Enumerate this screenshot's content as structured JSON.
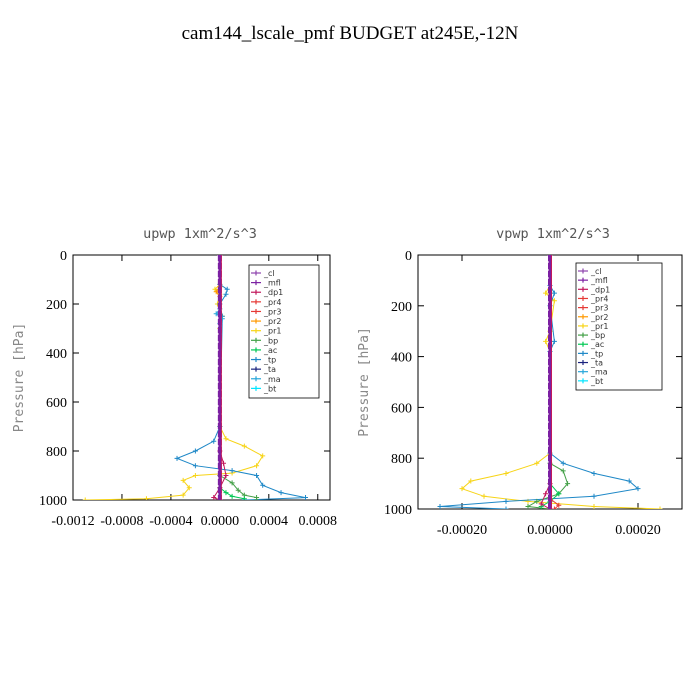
{
  "page": {
    "title": "cam144_lscale_pmf  BUDGET at245E,-12N"
  },
  "colors": {
    "_cl": "#8e44ad",
    "_mfl": "#7b1fa2",
    "_dp1": "#c2185b",
    "_pr4": "#e53935",
    "_pr3": "#e53935",
    "_pr2": "#ff9800",
    "_pr1": "#f7d417",
    "_bp": "#43a047",
    "_ac": "#00c853",
    "_tp": "#1e88c7",
    "_ta": "#1a237e",
    "_ma": "#26a6da",
    "_bt": "#00e5ff"
  },
  "chart_data": [
    {
      "type": "line",
      "title": "upwp  1xm^2/s^3",
      "ylabel": "Pressure [hPa]",
      "xlabel": "",
      "xlim": [
        -0.0012,
        0.0009
      ],
      "ylim": [
        1000,
        0
      ],
      "x_ticks": [
        "-0.0012",
        "-0.0008",
        "-0.0004",
        "0.0000",
        "0.0004",
        "0.0008"
      ],
      "y_ticks": [
        "0",
        "200",
        "400",
        "600",
        "800",
        "1000"
      ],
      "legend": [
        "_cl",
        "_mfl",
        "_dp1",
        "_pr4",
        "_pr3",
        "_pr2",
        "_pr1",
        "_bp",
        "_ac",
        "_tp",
        "_ta",
        "_ma",
        "_bt"
      ],
      "legend_position": "top-right",
      "series": [
        {
          "name": "_pr1",
          "points": [
            [
              0,
              0
            ],
            [
              0,
              120
            ],
            [
              -4e-05,
              140
            ],
            [
              0,
              160
            ],
            [
              -2e-05,
              200
            ],
            [
              2e-05,
              250
            ],
            [
              0,
              300
            ],
            [
              0,
              700
            ],
            [
              5e-05,
              750
            ],
            [
              0.0002,
              780
            ],
            [
              0.00035,
              820
            ],
            [
              0.0003,
              860
            ],
            [
              0.0001,
              890
            ],
            [
              -0.0002,
              900
            ],
            [
              -0.0003,
              920
            ],
            [
              -0.00025,
              950
            ],
            [
              -0.0003,
              980
            ],
            [
              -0.0006,
              995
            ],
            [
              -0.0011,
              1000
            ]
          ]
        },
        {
          "name": "_tp",
          "points": [
            [
              0,
              0
            ],
            [
              0,
              120
            ],
            [
              6e-05,
              140
            ],
            [
              5e-05,
              160
            ],
            [
              0,
              200
            ],
            [
              2e-05,
              250
            ],
            [
              0,
              700
            ],
            [
              -5e-05,
              760
            ],
            [
              -0.0002,
              800
            ],
            [
              -0.00035,
              830
            ],
            [
              -0.0002,
              860
            ],
            [
              0.0001,
              880
            ],
            [
              0.0003,
              900
            ],
            [
              0.00035,
              940
            ],
            [
              0.0005,
              970
            ],
            [
              0.0007,
              990
            ],
            [
              0.0002,
              1000
            ]
          ]
        },
        {
          "name": "_bp",
          "points": [
            [
              0,
              0
            ],
            [
              0,
              900
            ],
            [
              0.0001,
              930
            ],
            [
              0.00015,
              960
            ],
            [
              0.0002,
              980
            ],
            [
              0.0003,
              990
            ],
            [
              0.0003,
              1000
            ]
          ]
        },
        {
          "name": "_ac",
          "points": [
            [
              0,
              0
            ],
            [
              0,
              950
            ],
            [
              5e-05,
              970
            ],
            [
              0.0001,
              985
            ],
            [
              0.0002,
              995
            ]
          ]
        },
        {
          "name": "_dp1",
          "points": [
            [
              0,
              0
            ],
            [
              0,
              800
            ],
            [
              3e-05,
              850
            ],
            [
              5e-05,
              900
            ],
            [
              0,
              950
            ],
            [
              -5e-05,
              990
            ],
            [
              0,
              1000
            ]
          ]
        },
        {
          "name": "_pr2",
          "points": [
            [
              0,
              0
            ],
            [
              0,
              130
            ],
            [
              -3e-05,
              150
            ],
            [
              0,
              170
            ],
            [
              0,
              1000
            ]
          ]
        },
        {
          "name": "_ma",
          "points": [
            [
              0,
              0
            ],
            [
              0,
              220
            ],
            [
              -3e-05,
              240
            ],
            [
              2e-05,
              260
            ],
            [
              0,
              280
            ],
            [
              0,
              1000
            ]
          ]
        },
        {
          "name": "_mfl",
          "points": [
            [
              0,
              0
            ],
            [
              0,
              1000
            ]
          ]
        }
      ]
    },
    {
      "type": "line",
      "title": "vpwp  1xm^2/s^3",
      "ylabel": "Pressure [hPa]",
      "xlabel": "",
      "xlim": [
        -0.0003,
        0.0003
      ],
      "ylim": [
        1000,
        0
      ],
      "x_ticks": [
        "-0.00020",
        "0.00000",
        "0.00020"
      ],
      "y_ticks": [
        "0",
        "200",
        "400",
        "600",
        "800",
        "1000"
      ],
      "legend": [
        "_cl",
        "_mfl",
        "_dp1",
        "_pr4",
        "_pr3",
        "_pr2",
        "_pr1",
        "_bp",
        "_ac",
        "_tp",
        "_ta",
        "_ma",
        "_bt"
      ],
      "legend_position": "top-right",
      "series": [
        {
          "name": "_pr1",
          "points": [
            [
              0,
              0
            ],
            [
              0,
              120
            ],
            [
              -1e-05,
              150
            ],
            [
              1e-05,
              180
            ],
            [
              0,
              300
            ],
            [
              -1e-05,
              340
            ],
            [
              0,
              380
            ],
            [
              0,
              780
            ],
            [
              -3e-05,
              820
            ],
            [
              -0.0001,
              860
            ],
            [
              -0.00018,
              890
            ],
            [
              -0.0002,
              920
            ],
            [
              -0.00015,
              950
            ],
            [
              -5e-05,
              970
            ],
            [
              0.0001,
              990
            ],
            [
              0.00025,
              1000
            ]
          ]
        },
        {
          "name": "_tp",
          "points": [
            [
              0,
              0
            ],
            [
              0,
              120
            ],
            [
              1e-05,
              150
            ],
            [
              0,
              200
            ],
            [
              1e-05,
              340
            ],
            [
              0,
              380
            ],
            [
              0,
              780
            ],
            [
              3e-05,
              820
            ],
            [
              0.0001,
              860
            ],
            [
              0.00018,
              890
            ],
            [
              0.0002,
              920
            ],
            [
              0.0001,
              950
            ],
            [
              -0.0001,
              970
            ],
            [
              -0.00025,
              990
            ],
            [
              -0.0001,
              1000
            ]
          ]
        },
        {
          "name": "_bp",
          "points": [
            [
              0,
              0
            ],
            [
              0,
              820
            ],
            [
              3e-05,
              850
            ],
            [
              4e-05,
              900
            ],
            [
              2e-05,
              940
            ],
            [
              -3e-05,
              970
            ],
            [
              -5e-05,
              990
            ],
            [
              0,
              1000
            ]
          ]
        },
        {
          "name": "_ac",
          "points": [
            [
              0,
              0
            ],
            [
              0,
              900
            ],
            [
              2e-05,
              940
            ],
            [
              0,
              970
            ],
            [
              -2e-05,
              990
            ]
          ]
        },
        {
          "name": "_dp1",
          "points": [
            [
              0,
              0
            ],
            [
              0,
              900
            ],
            [
              -1e-05,
              940
            ],
            [
              -2e-05,
              980
            ],
            [
              0,
              1000
            ]
          ]
        },
        {
          "name": "_pr4",
          "points": [
            [
              0,
              0
            ],
            [
              0,
              960
            ],
            [
              2e-05,
              985
            ],
            [
              1e-05,
              1000
            ]
          ]
        },
        {
          "name": "_mfl",
          "points": [
            [
              0,
              0
            ],
            [
              0,
              1000
            ]
          ]
        }
      ]
    }
  ]
}
